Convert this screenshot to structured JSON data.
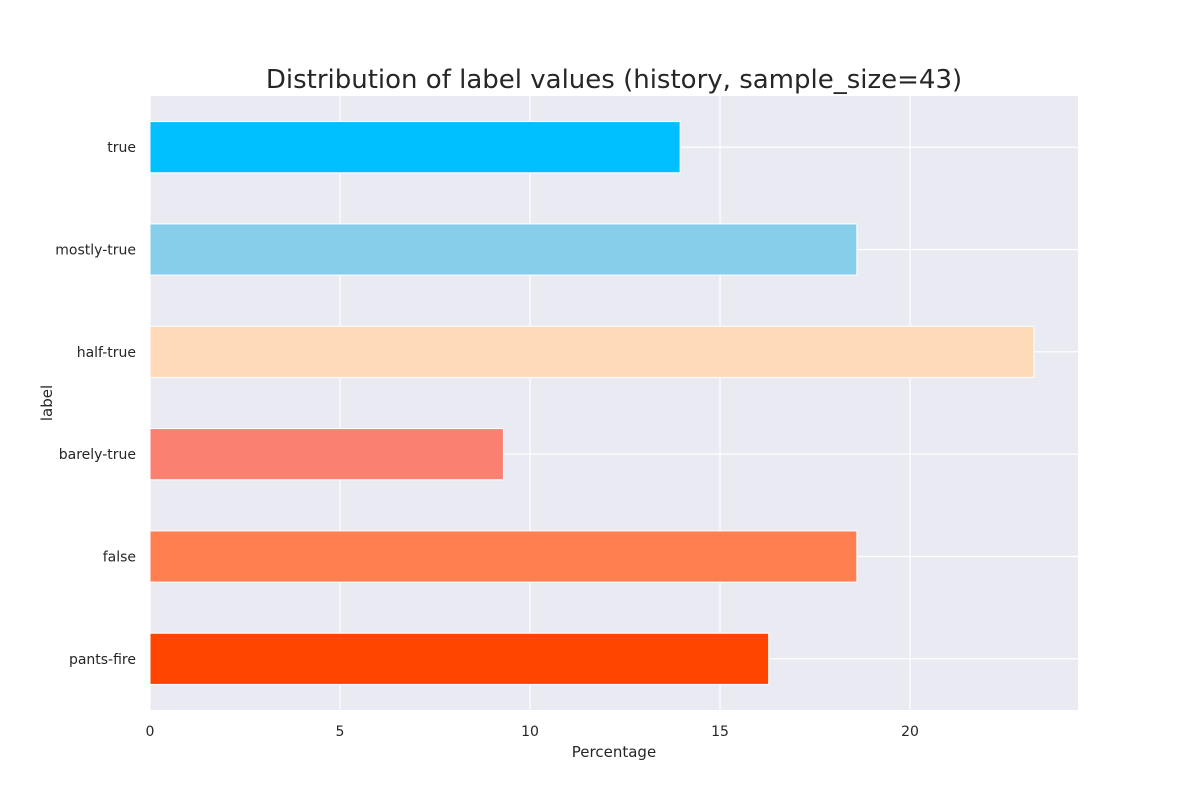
{
  "chart_data": {
    "type": "bar",
    "orientation": "horizontal",
    "title": "Distribution of label values (history, sample_size=43)",
    "xlabel": "Percentage",
    "ylabel": "label",
    "categories": [
      "true",
      "mostly-true",
      "half-true",
      "barely-true",
      "false",
      "pants-fire"
    ],
    "values": [
      13.95,
      18.6,
      23.26,
      9.3,
      18.6,
      16.28
    ],
    "colors": [
      "#00bfff",
      "#87ceeb",
      "#ffdab9",
      "#fa8072",
      "#ff7f50",
      "#ff4500"
    ],
    "xlim": [
      0,
      24.42
    ],
    "xticks": [
      0,
      5,
      10,
      15,
      20
    ],
    "grid": true,
    "background": "#eaeaf2",
    "grid_color": "#ffffff"
  }
}
